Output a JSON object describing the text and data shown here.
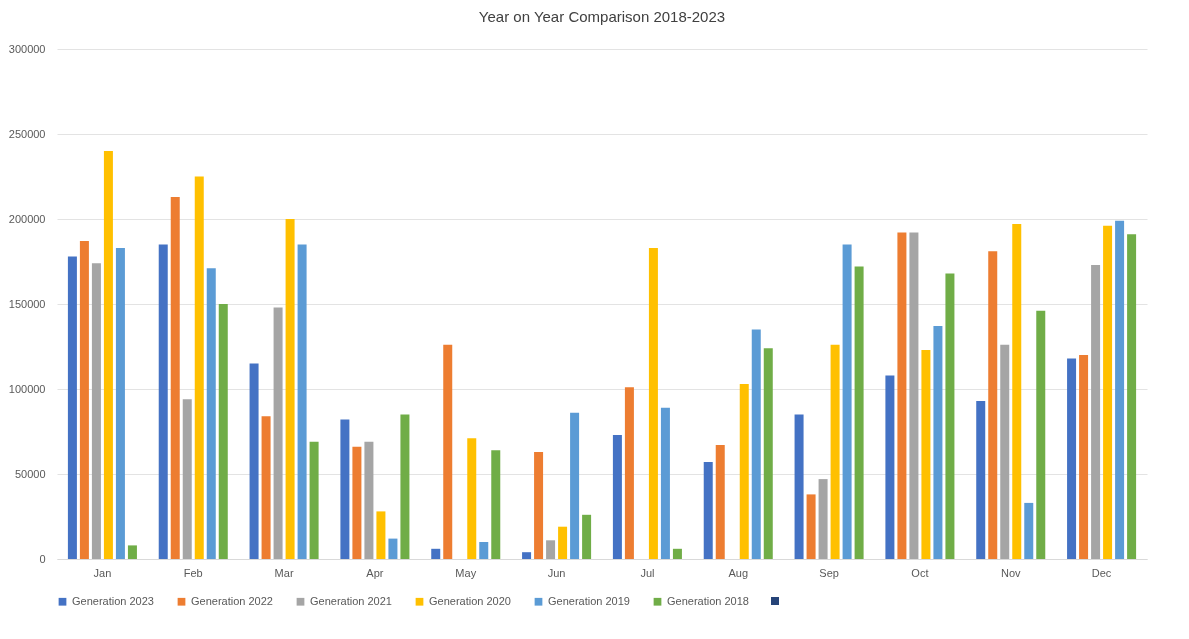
{
  "chart_data": {
    "type": "bar",
    "title": "Year on Year Comparison 2018-2023",
    "categories": [
      "Jan",
      "Feb",
      "Mar",
      "Apr",
      "May",
      "Jun",
      "Jul",
      "Aug",
      "Sep",
      "Oct",
      "Nov",
      "Dec"
    ],
    "series": [
      {
        "name": "Generation 2023",
        "color": "#4472c4",
        "values": [
          178000,
          185000,
          115000,
          82000,
          6000,
          4000,
          73000,
          57000,
          85000,
          108000,
          93000,
          118000
        ]
      },
      {
        "name": "Generation 2022",
        "color": "#ed7d31",
        "values": [
          187000,
          213000,
          84000,
          66000,
          126000,
          63000,
          101000,
          67000,
          38000,
          192000,
          181000,
          120000
        ]
      },
      {
        "name": "Generation 2021",
        "color": "#a5a5a5",
        "values": [
          174000,
          94000,
          148000,
          69000,
          null,
          11000,
          null,
          null,
          47000,
          192000,
          126000,
          173000
        ]
      },
      {
        "name": "Generation 2020",
        "color": "#ffc000",
        "values": [
          240000,
          225000,
          200000,
          28000,
          71000,
          19000,
          183000,
          103000,
          126000,
          123000,
          197000,
          196000
        ]
      },
      {
        "name": "Generation 2019",
        "color": "#5b9bd5",
        "values": [
          183000,
          171000,
          185000,
          12000,
          10000,
          86000,
          89000,
          135000,
          185000,
          137000,
          33000,
          199000
        ]
      },
      {
        "name": "Generation 2018",
        "color": "#70ad47",
        "values": [
          8000,
          150000,
          69000,
          85000,
          64000,
          26000,
          6000,
          124000,
          172000,
          168000,
          146000,
          191000
        ]
      }
    ],
    "ylim": [
      0,
      300000
    ],
    "yticks": [
      0,
      50000,
      100000,
      150000,
      200000,
      250000,
      300000
    ],
    "grid": "y",
    "legend": "bottom"
  }
}
